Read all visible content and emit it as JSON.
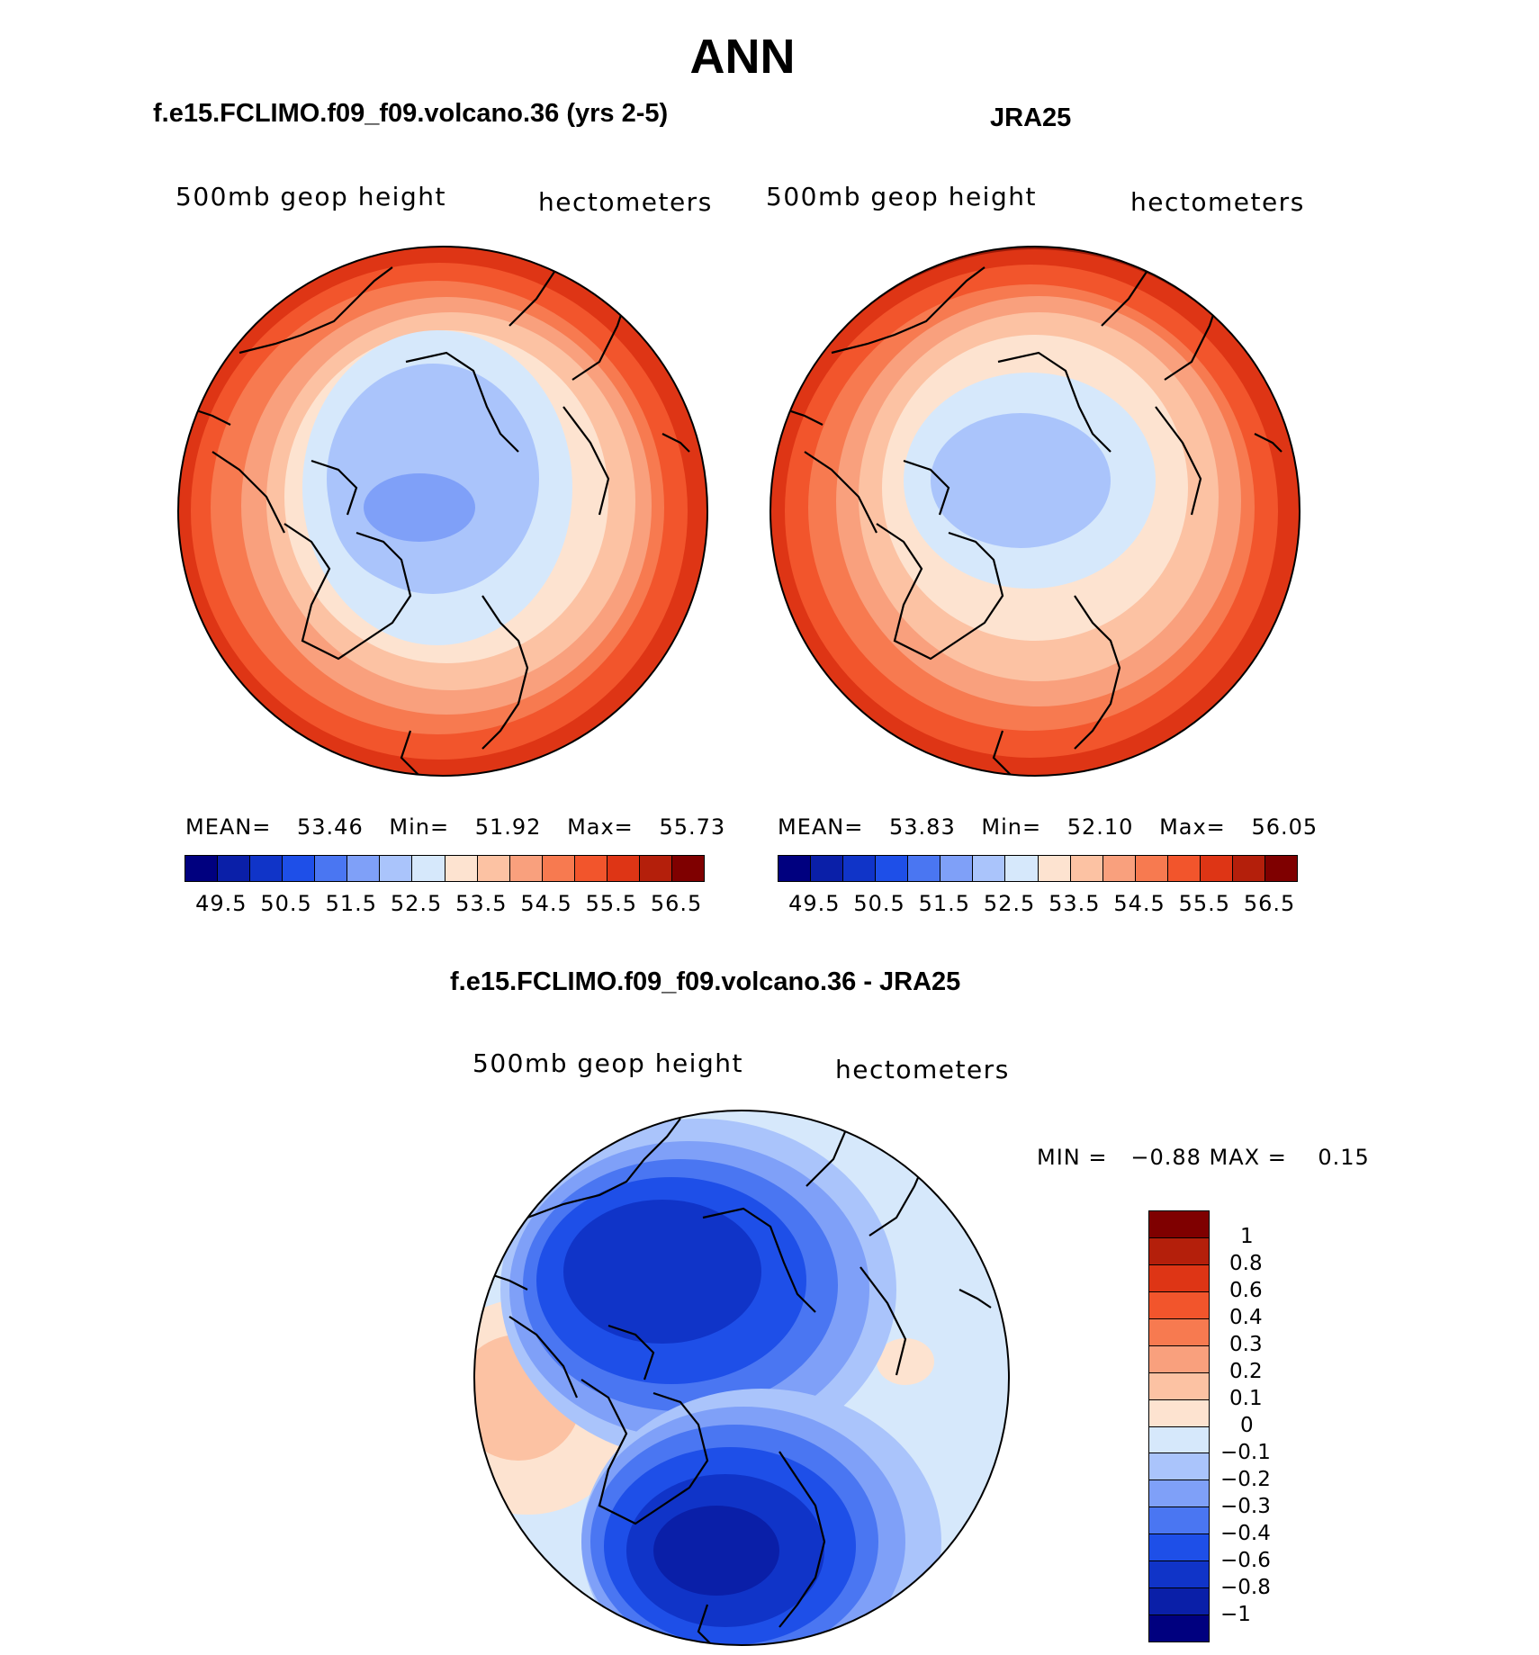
{
  "title": "ANN",
  "panels": {
    "left": {
      "title": "f.e15.FCLIMO.f09_f09.volcano.36 (yrs 2-5)",
      "var_label": "500mb geop height",
      "units": "hectometers",
      "stats": {
        "mean_label": "MEAN=",
        "mean": "53.46",
        "min_label": "Min=",
        "min": "51.92",
        "max_label": "Max=",
        "max": "55.73"
      }
    },
    "right": {
      "title": "JRA25",
      "var_label": "500mb geop height",
      "units": "hectometers",
      "stats": {
        "mean_label": "MEAN=",
        "mean": "53.83",
        "min_label": "Min=",
        "min": "52.10",
        "max_label": "Max=",
        "max": "56.05"
      }
    },
    "diff": {
      "title": "f.e15.FCLIMO.f09_f09.volcano.36 - JRA25",
      "var_label": "500mb geop height",
      "units": "hectometers",
      "minmax": "MIN =   −0.88 MAX =    0.15"
    }
  },
  "colorbar_abs": {
    "labels": [
      "49.5",
      "50.5",
      "51.5",
      "52.5",
      "53.5",
      "54.5",
      "55.5",
      "56.5"
    ],
    "colors": [
      "#00007f",
      "#0a1fa8",
      "#1034c8",
      "#1e4fe8",
      "#4a76f2",
      "#7fa0f8",
      "#aac4fb",
      "#d6e8fb",
      "#fde3d0",
      "#fcc2a3",
      "#f9a07d",
      "#f77a50",
      "#f2552c",
      "#de3515",
      "#b41f0b",
      "#7f0000"
    ]
  },
  "colorbar_diff": {
    "labels": [
      "1",
      "0.8",
      "0.6",
      "0.4",
      "0.3",
      "0.2",
      "0.1",
      "0",
      "−0.1",
      "−0.2",
      "−0.3",
      "−0.4",
      "−0.6",
      "−0.8",
      "−1"
    ],
    "colors": [
      "#7f0000",
      "#b41f0b",
      "#de3515",
      "#f2552c",
      "#f77a50",
      "#f9a07d",
      "#fcc2a3",
      "#fde3d0",
      "#d6e8fb",
      "#aac4fb",
      "#7fa0f8",
      "#4a76f2",
      "#1e4fe8",
      "#1034c8",
      "#0a1fa8",
      "#00007f"
    ]
  },
  "chart_data": [
    {
      "type": "heatmap",
      "title": "f.e15.FCLIMO.f09_f09.volcano.36 (yrs 2-5)",
      "variable": "500mb geop height",
      "units": "hectometers",
      "mean": 53.46,
      "min": 51.92,
      "max": 55.73
    },
    {
      "type": "heatmap",
      "title": "JRA25",
      "variable": "500mb geop height",
      "units": "hectometers",
      "mean": 53.83,
      "min": 52.1,
      "max": 56.05
    },
    {
      "type": "heatmap",
      "title": "f.e15.FCLIMO.f09_f09.volcano.36 - JRA25",
      "variable": "500mb geop height",
      "units": "hectometers",
      "min": -0.88,
      "max": 0.15
    }
  ]
}
